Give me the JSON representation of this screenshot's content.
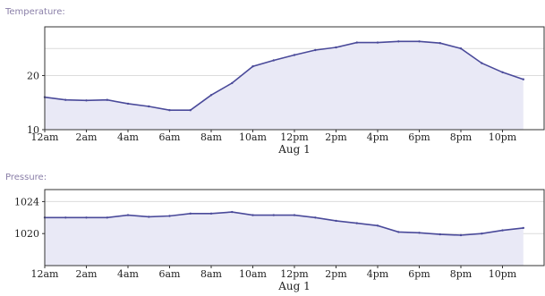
{
  "chart_data": [
    {
      "type": "area",
      "label": "Temperature:",
      "date_label": "Aug 1",
      "x_ticks": [
        "12am",
        "2am",
        "4am",
        "6am",
        "8am",
        "10am",
        "12pm",
        "2pm",
        "4pm",
        "6pm",
        "8pm",
        "10pm"
      ],
      "y_ticks": [
        10,
        20
      ],
      "ylim": [
        10,
        29
      ],
      "x_hours": [
        0,
        1,
        2,
        3,
        4,
        5,
        6,
        7,
        8,
        9,
        10,
        11,
        12,
        13,
        14,
        15,
        16,
        17,
        18,
        19,
        20,
        21,
        22,
        23
      ],
      "values": [
        16.0,
        15.5,
        15.4,
        15.5,
        14.8,
        14.3,
        13.6,
        13.6,
        16.4,
        18.6,
        21.7,
        22.8,
        23.8,
        24.7,
        25.2,
        26.1,
        26.1,
        26.3,
        26.3,
        26.0,
        25.0,
        22.3,
        20.6,
        19.3
      ],
      "grid": true,
      "line_color": "#4a4a9a",
      "fill_color": "#e9e9f6"
    },
    {
      "type": "area",
      "label": "Pressure:",
      "date_label": "Aug 1",
      "x_ticks": [
        "12am",
        "2am",
        "4am",
        "6am",
        "8am",
        "10am",
        "12pm",
        "2pm",
        "4pm",
        "6pm",
        "8pm",
        "10pm"
      ],
      "y_ticks": [
        1020,
        1024
      ],
      "ylim": [
        1016,
        1025.5
      ],
      "x_hours": [
        0,
        1,
        2,
        3,
        4,
        5,
        6,
        7,
        8,
        9,
        10,
        11,
        12,
        13,
        14,
        15,
        16,
        17,
        18,
        19,
        20,
        21,
        22,
        23
      ],
      "values": [
        1022.0,
        1022.0,
        1022.0,
        1022.0,
        1022.3,
        1022.1,
        1022.2,
        1022.5,
        1022.5,
        1022.7,
        1022.3,
        1022.3,
        1022.3,
        1022.0,
        1021.6,
        1021.3,
        1021.0,
        1020.2,
        1020.1,
        1019.9,
        1019.8,
        1020.0,
        1020.4,
        1020.7
      ],
      "grid": true,
      "line_color": "#4a4a9a",
      "fill_color": "#e9e9f6"
    }
  ]
}
